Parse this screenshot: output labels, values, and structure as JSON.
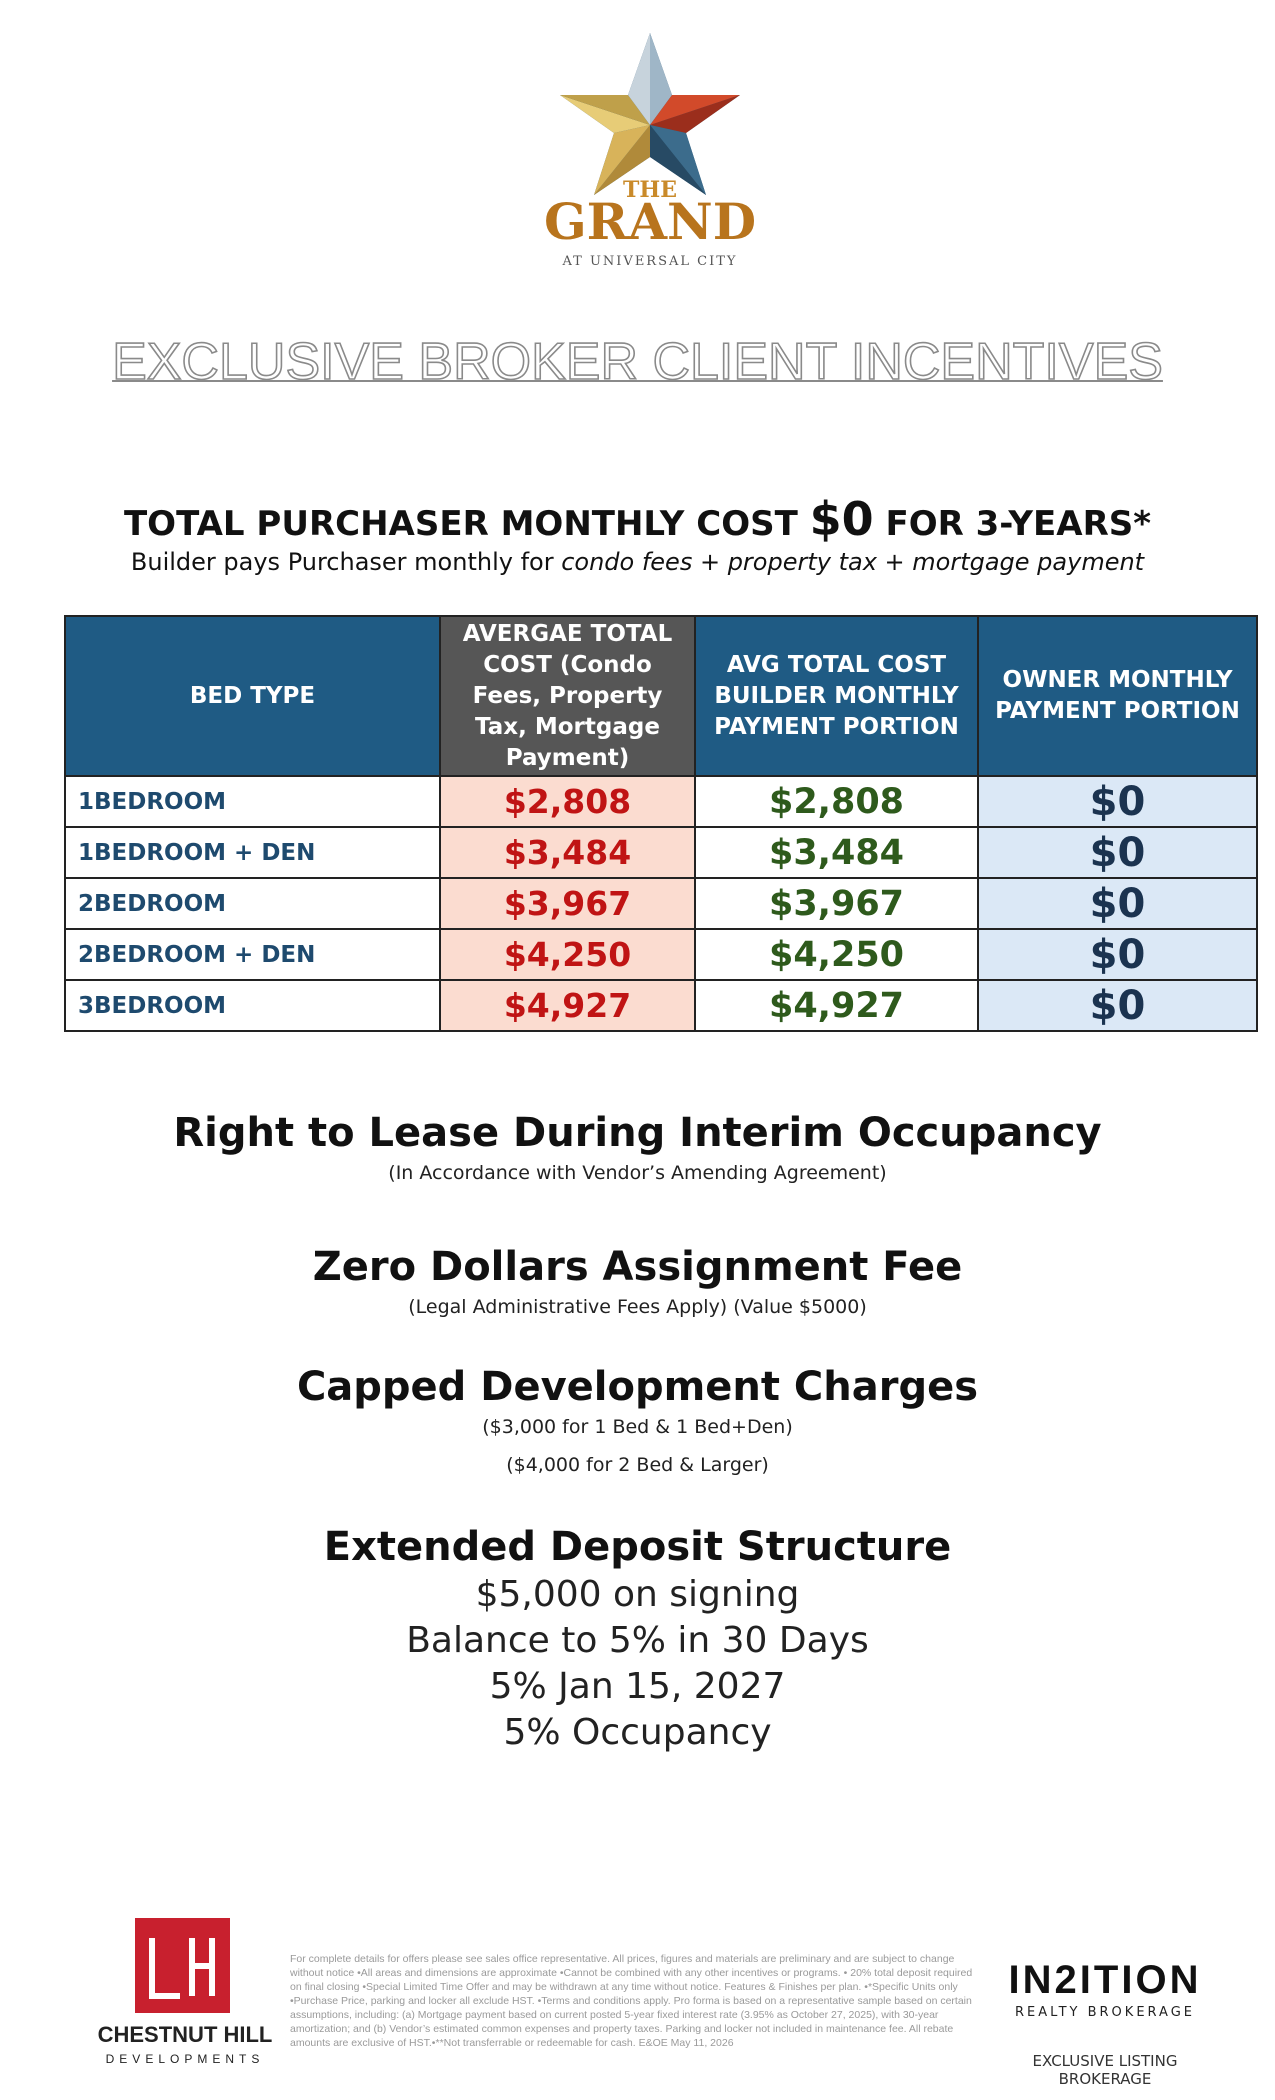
{
  "logo": {
    "line1": "THE",
    "line2": "GRAND",
    "line3": "AT UNIVERSAL CITY"
  },
  "headline": "EXCLUSIVE BROKER CLIENT INCENTIVES",
  "cost": {
    "title_pre": "TOTAL PURCHASER MONTHLY COST ",
    "title_amount": "$0",
    "title_post": " FOR 3-YEARS*",
    "subtitle_pre": "Builder pays Purchaser monthly for ",
    "subtitle_italic": "condo fees + property tax + mortgage payment"
  },
  "table": {
    "headers": [
      "BED TYPE",
      "AVERGAE TOTAL COST (Condo Fees, Property Tax, Mortgage Payment)",
      "AVG TOTAL COST BUILDER MONTHLY PAYMENT PORTION",
      "OWNER MONTHLY PAYMENT PORTION"
    ],
    "rows": [
      {
        "bed": "1BEDROOM",
        "avg": "$2,808",
        "builder": "$2,808",
        "owner": "$0"
      },
      {
        "bed": "1BEDROOM + DEN",
        "avg": "$3,484",
        "builder": "$3,484",
        "owner": "$0"
      },
      {
        "bed": "2BEDROOM",
        "avg": "$3,967",
        "builder": "$3,967",
        "owner": "$0"
      },
      {
        "bed": "2BEDROOM + DEN",
        "avg": "$4,250",
        "builder": "$4,250",
        "owner": "$0"
      },
      {
        "bed": "3BEDROOM",
        "avg": "$4,927",
        "builder": "$4,927",
        "owner": "$0"
      }
    ]
  },
  "features": {
    "lease_title": "Right to Lease During Interim Occupancy",
    "lease_sub": "(In Accordance with Vendor’s Amending Agreement)",
    "assign_title": "Zero Dollars Assignment Fee",
    "assign_sub": "(Legal Administrative Fees Apply) (Value $5000)",
    "dev_title": "Capped Development Charges",
    "dev_sub1": "($3,000 for 1 Bed & 1 Bed+Den)",
    "dev_sub2": "($4,000 for 2 Bed & Larger)",
    "deposit_title": "Extended Deposit Structure",
    "deposit_lines": [
      "$5,000 on signing",
      "Balance to 5% in 30 Days",
      "5% Jan 15, 2027",
      "5% Occupancy"
    ]
  },
  "footer": {
    "chestnut_name": "CHESTNUT HILL",
    "chestnut_sub": "DEVELOPMENTS",
    "disclaimer": "For complete details for offers please see sales office representative. All prices, figures and materials are preliminary and are subject to change without notice •All areas and dimensions are approximate •Cannot be combined with any other incentives or programs. • 20% total deposit required on final closing •Special Limited Time Offer and may be withdrawn at any time without notice. Features & Finishes per plan. •*Specific Units only •Purchase Price, parking and locker all exclude HST. •Terms and conditions apply. Pro forma is based on a representative sample based on certain assumptions, including: (a) Mortgage payment based on current posted 5-year fixed interest rate (3.95% as October 27, 2025), with 30-year amortization; and (b) Vendor’s estimated common expenses and property taxes. Parking and locker not included in maintenance fee. All rebate amounts are exclusive of HST.•**Not transferrable or redeemable for cash. E&OE May 11, 2026",
    "in2ition_name": "IN2ITION",
    "in2ition_sub": "REALTY BROKERAGE",
    "in2ition_tag": "EXCLUSIVE LISTING BROKERAGE"
  },
  "colors": {
    "header_blue": "#1f5b84",
    "header_grey": "#565656",
    "avg_bg": "#fbdcd0",
    "avg_text": "#c01414",
    "builder_text": "#2e5a1c",
    "owner_bg": "#dbe8f6",
    "chestnut_red": "#c8202e"
  }
}
